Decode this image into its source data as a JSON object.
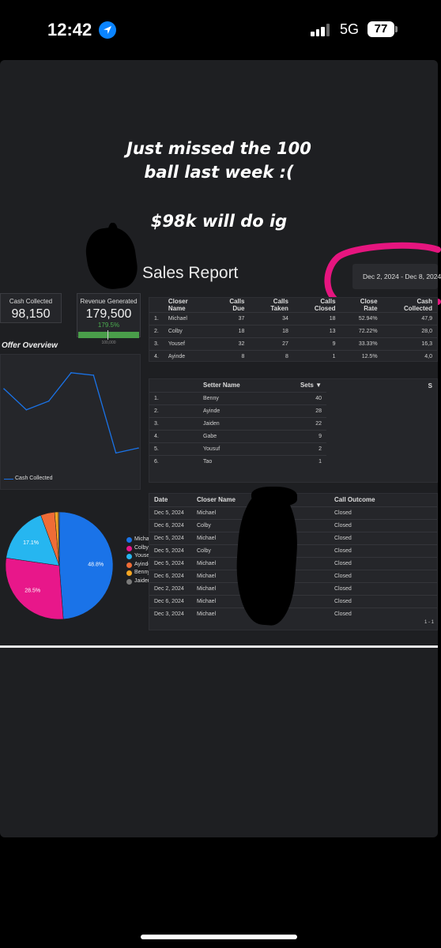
{
  "status": {
    "time": "12:42",
    "network": "5G",
    "battery": "77"
  },
  "caption": {
    "line1": "Just missed the 100",
    "line2": "ball last week :(",
    "line3": "$98k will do ig"
  },
  "dashboard": {
    "title": "Sales Report",
    "date_range": "Dec 2, 2024 - Dec 8, 2024",
    "kpis": {
      "cash_collected": {
        "label": "Cash Collected",
        "value": "98,150"
      },
      "revenue": {
        "label": "Revenue Generated",
        "value": "179,500",
        "pct": "179.5%",
        "target": "100,000"
      }
    },
    "offer_overview": {
      "title": "Offer Overview",
      "legend": "Cash Collected"
    },
    "closer_table": {
      "headers": [
        "Closer Name",
        "Calls Due",
        "Calls Taken",
        "Calls Closed",
        "Close Rate",
        "Cash Collected"
      ],
      "rows": [
        [
          "1.",
          "Michael",
          "37",
          "34",
          "18",
          "52.94%",
          "47,9"
        ],
        [
          "2.",
          "Colby",
          "18",
          "18",
          "13",
          "72.22%",
          "28,0"
        ],
        [
          "3.",
          "Yousef",
          "32",
          "27",
          "9",
          "33.33%",
          "16,3"
        ],
        [
          "4.",
          "Ayinde",
          "8",
          "8",
          "1",
          "12.5%",
          "4,0"
        ]
      ]
    },
    "setter_table": {
      "headers": [
        "Setter Name",
        "Sets ▼",
        "S"
      ],
      "rows": [
        [
          "1.",
          "Benny",
          "40"
        ],
        [
          "2.",
          "Ayinde",
          "28"
        ],
        [
          "3.",
          "Jaiden",
          "22"
        ],
        [
          "4.",
          "Gabe",
          "9"
        ],
        [
          "5.",
          "Yousuf",
          "2"
        ],
        [
          "6.",
          "Tao",
          "1"
        ]
      ]
    },
    "calls_table": {
      "headers": [
        "Date",
        "Closer Name",
        "Call Outcome"
      ],
      "rows": [
        [
          "Dec 5, 2024",
          "Michael",
          "Closed"
        ],
        [
          "Dec 6, 2024",
          "Colby",
          "Closed"
        ],
        [
          "Dec 5, 2024",
          "Michael",
          "Closed"
        ],
        [
          "Dec 5, 2024",
          "Colby",
          "Closed"
        ],
        [
          "Dec 5, 2024",
          "Michael",
          "Closed"
        ],
        [
          "Dec 6, 2024",
          "Michael",
          "Closed"
        ],
        [
          "Dec 2, 2024",
          "Michael",
          "Closed"
        ],
        [
          "Dec 6, 2024",
          "Michael",
          "Closed"
        ],
        [
          "Dec 3, 2024",
          "Michael",
          "Closed"
        ]
      ],
      "pagination": "1 - 1"
    }
  },
  "chart_data": [
    {
      "type": "line",
      "title": "Offer Overview",
      "series": [
        {
          "name": "Cash Collected",
          "values": [
            62,
            45,
            52,
            75,
            73,
            10,
            14
          ]
        }
      ],
      "color": "#1a73e8",
      "grid": false,
      "legend": "bottom-left"
    },
    {
      "type": "pie",
      "categories": [
        "Michael",
        "Colby",
        "Yousef",
        "Ayinde",
        "Benny",
        "Jaiden"
      ],
      "values": [
        48.8,
        28.5,
        17.1,
        4.2,
        1.1,
        0.3
      ],
      "labels": [
        "48.8%",
        "28.5%",
        "17.1%",
        "",
        "",
        ""
      ],
      "colors": [
        "#1a73e8",
        "#e8178a",
        "#26b6f0",
        "#ef6c36",
        "#f5a623",
        "#7a7a7a"
      ],
      "legend": "right"
    }
  ]
}
